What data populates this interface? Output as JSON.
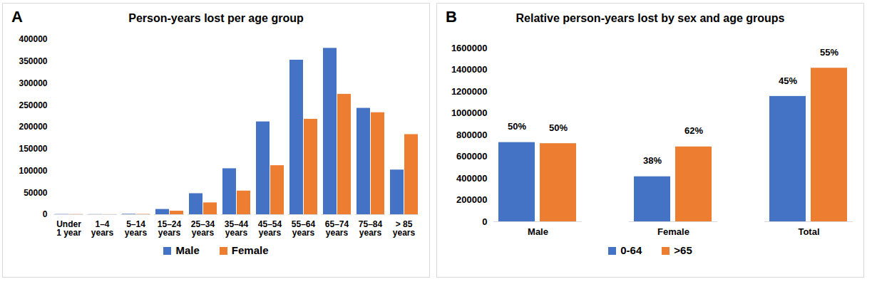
{
  "chart_data": [
    {
      "panel": "A",
      "type": "bar",
      "title": "Person-years lost per age group",
      "categories": [
        "Under 1 year",
        "1–4 years",
        "5–14 years",
        "15–24 years",
        "25–34 years",
        "35–44 years",
        "45–54 years",
        "55–64 years",
        "65–74 years",
        "75–84 years",
        "> 85 years"
      ],
      "series": [
        {
          "name": "Male",
          "color": "#4472c4",
          "values": [
            500,
            300,
            1000,
            12000,
            48000,
            105000,
            212000,
            353000,
            380000,
            243000,
            102000
          ]
        },
        {
          "name": "Female",
          "color": "#ed7d31",
          "values": [
            400,
            200,
            700,
            8000,
            27000,
            54000,
            112000,
            218000,
            275000,
            233000,
            183000
          ]
        }
      ],
      "ylim": [
        0,
        400000
      ],
      "yticks": [
        0,
        50000,
        100000,
        150000,
        200000,
        250000,
        300000,
        350000,
        400000
      ],
      "grid": false,
      "legend": "bottom"
    },
    {
      "panel": "B",
      "type": "bar",
      "title": "Relative person-years lost by sex and age groups",
      "categories": [
        "Male",
        "Female",
        "Total"
      ],
      "series": [
        {
          "name": "0-64",
          "color": "#4472c4",
          "values": [
            730000,
            415000,
            1155000
          ],
          "share_labels": [
            "50%",
            "38%",
            "45%"
          ]
        },
        {
          "name": ">65",
          "color": "#ed7d31",
          "values": [
            720000,
            690000,
            1415000
          ],
          "share_labels": [
            "50%",
            "62%",
            "55%"
          ]
        }
      ],
      "ylim": [
        0,
        1600000
      ],
      "yticks": [
        0,
        200000,
        400000,
        600000,
        800000,
        1000000,
        1200000,
        1400000,
        1600000
      ],
      "grid": false,
      "legend": "bottom"
    }
  ]
}
